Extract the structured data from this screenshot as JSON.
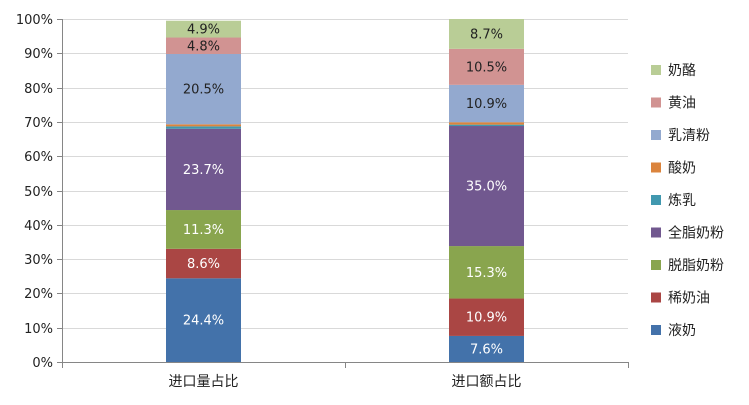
{
  "chart_data": {
    "type": "bar",
    "stacked": true,
    "percent": true,
    "categories": [
      "进口量占比",
      "进口额占比"
    ],
    "ylim": [
      0,
      100
    ],
    "yticks": [
      "0%",
      "10%",
      "20%",
      "30%",
      "40%",
      "50%",
      "60%",
      "70%",
      "80%",
      "90%",
      "100%"
    ],
    "legend_position": "right",
    "series": [
      {
        "name": "液奶",
        "color": "#4372AA",
        "values": [
          24.4,
          7.6
        ],
        "labels": [
          "24.4%",
          "7.6%"
        ],
        "label_color": "#ffffff"
      },
      {
        "name": "稀奶油",
        "color": "#AA4644",
        "values": [
          8.6,
          10.9
        ],
        "labels": [
          "8.6%",
          "10.9%"
        ],
        "label_color": "#ffffff"
      },
      {
        "name": "脱脂奶粉",
        "color": "#89A54E",
        "values": [
          11.3,
          15.3
        ],
        "labels": [
          "11.3%",
          "15.3%"
        ],
        "label_color": "#ffffff"
      },
      {
        "name": "全脂奶粉",
        "color": "#71588F",
        "values": [
          23.7,
          35.0
        ],
        "labels": [
          "23.7%",
          "35.0%"
        ],
        "label_color": "#ffffff"
      },
      {
        "name": "炼乳",
        "color": "#4198AF",
        "values": [
          0.7,
          0.4
        ],
        "labels": [
          "",
          ""
        ],
        "label_color": "#222222"
      },
      {
        "name": "酸奶",
        "color": "#DB843D",
        "values": [
          0.6,
          0.7
        ],
        "labels": [
          "",
          ""
        ],
        "label_color": "#222222"
      },
      {
        "name": "乳清粉",
        "color": "#93A9CF",
        "values": [
          20.5,
          10.9
        ],
        "labels": [
          "20.5%",
          "10.9%"
        ],
        "label_color": "#222222"
      },
      {
        "name": "黄油",
        "color": "#D19392",
        "values": [
          4.8,
          10.5
        ],
        "labels": [
          "4.8%",
          "10.5%"
        ],
        "label_color": "#222222"
      },
      {
        "name": "奶酪",
        "color": "#B9CD96",
        "values": [
          4.9,
          8.7
        ],
        "labels": [
          "4.9%",
          "8.7%"
        ],
        "label_color": "#222222"
      }
    ]
  }
}
